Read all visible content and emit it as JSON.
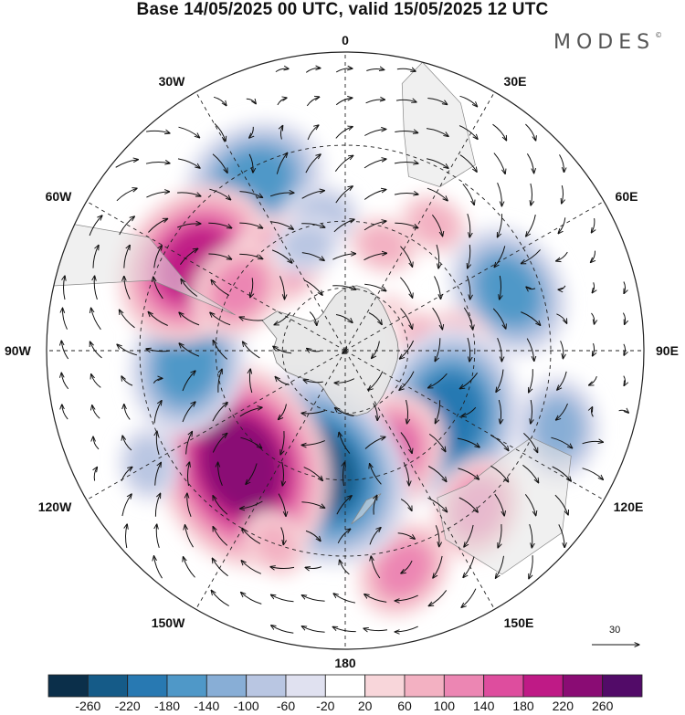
{
  "title": "Base 14/05/2025 00 UTC, valid 15/05/2025 12 UTC",
  "brand": "MODES",
  "brand_mark": "©",
  "longitude_labels": {
    "lon_0": "0",
    "lon_30e": "30E",
    "lon_60e": "60E",
    "lon_90e": "90E",
    "lon_120e": "120E",
    "lon_150e": "150E",
    "lon_180": "180",
    "lon_150w": "150W",
    "lon_120w": "120W",
    "lon_90w": "90W",
    "lon_60w": "60W",
    "lon_30w": "30W"
  },
  "vector_scale": {
    "label": "30"
  },
  "colorbar": {
    "ticks": [
      "-260",
      "-220",
      "-180",
      "-140",
      "-100",
      "-60",
      "-20",
      "20",
      "60",
      "100",
      "140",
      "180",
      "220",
      "260"
    ],
    "colors": [
      "#0b2f4a",
      "#155b88",
      "#2879b2",
      "#4f98c8",
      "#88aed6",
      "#b9c6e2",
      "#e0e1f0",
      "#ffffff",
      "#f8d6da",
      "#f3b1c2",
      "#ec86b3",
      "#de4d9e",
      "#bf1a86",
      "#8a0c74",
      "#520b68"
    ]
  },
  "map": {
    "projection": "polar-stereographic-south",
    "graticule": "dashed",
    "land_color": "#e4e4e4",
    "anomalies": [
      {
        "lon": -28,
        "lat": -33,
        "value": -160
      },
      {
        "lon": -10,
        "lat": -48,
        "value": -80
      },
      {
        "lon": 20,
        "lat": -55,
        "value": 60
      },
      {
        "lon": 35,
        "lat": -43,
        "value": 60
      },
      {
        "lon": 50,
        "lat": -70,
        "value": 20
      },
      {
        "lon": 70,
        "lat": -38,
        "value": -140
      },
      {
        "lon": 95,
        "lat": -55,
        "value": 100
      },
      {
        "lon": 85,
        "lat": -65,
        "value": 60
      },
      {
        "lon": 122,
        "lat": -52,
        "value": -200
      },
      {
        "lon": 160,
        "lat": -55,
        "value": 140
      },
      {
        "lon": 140,
        "lat": -30,
        "value": 100
      },
      {
        "lon": 110,
        "lat": -25,
        "value": -100
      },
      {
        "lon": 165,
        "lat": -25,
        "value": 100
      },
      {
        "lon": -165,
        "lat": -52,
        "value": -240
      },
      {
        "lon": -138,
        "lat": -43,
        "value": 240
      },
      {
        "lon": -95,
        "lat": -42,
        "value": -160
      },
      {
        "lon": -60,
        "lat": -38,
        "value": 180
      },
      {
        "lon": -38,
        "lat": -55,
        "value": 120
      },
      {
        "lon": -60,
        "lat": -52,
        "value": 100
      },
      {
        "lon": -20,
        "lat": -55,
        "value": -60
      },
      {
        "lon": -120,
        "lat": -25,
        "value": -80
      },
      {
        "lon": -160,
        "lat": -30,
        "value": 60
      }
    ]
  }
}
